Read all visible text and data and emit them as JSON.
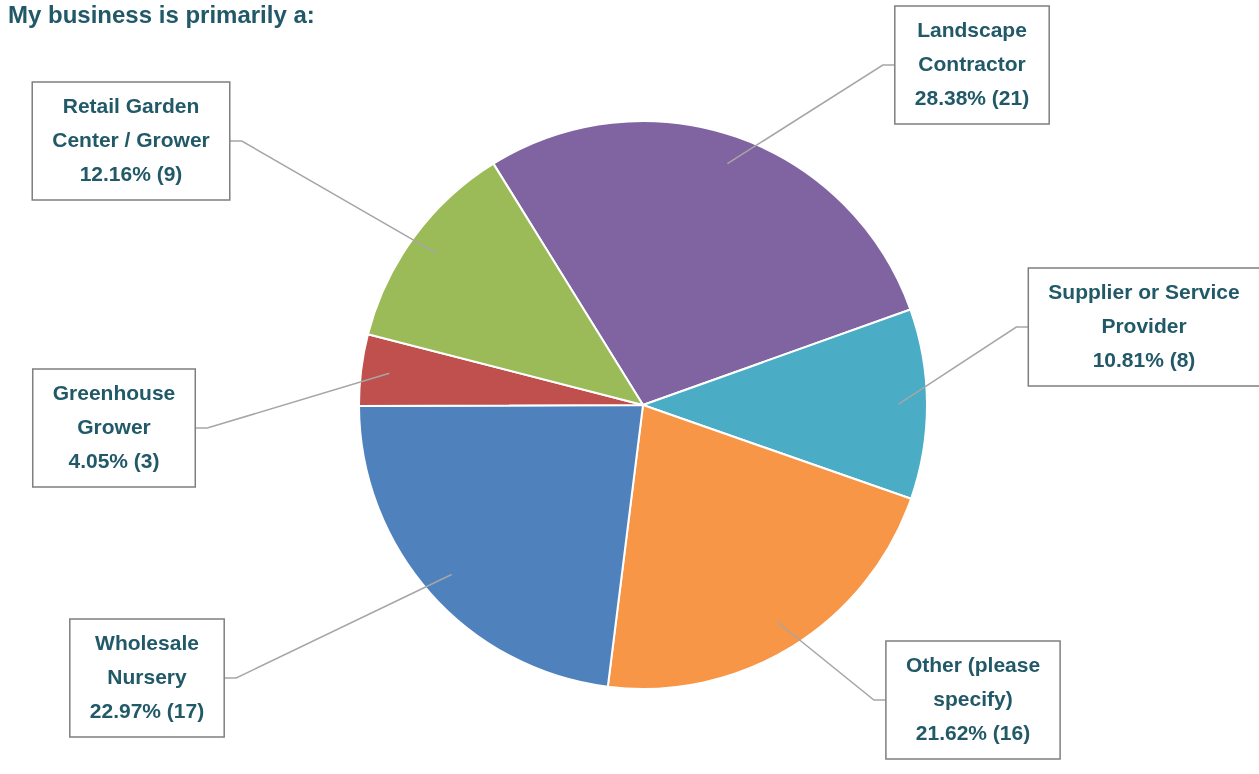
{
  "chart_data": {
    "type": "pie",
    "title": "My business is primarily a:",
    "categories": [
      "Landscape Contractor",
      "Supplier or Service Provider",
      "Other (please specify)",
      "Wholesale Nursery",
      "Greenhouse Grower",
      "Retail Garden Center / Grower"
    ],
    "values": [
      21,
      8,
      16,
      17,
      3,
      9
    ],
    "colors": [
      "#8064a2",
      "#4bacc6",
      "#f79646",
      "#4f81bd",
      "#c0504d",
      "#9bbb59"
    ],
    "value_labels": [
      "28.38% (21)",
      "10.81% (8)",
      "21.62% (16)",
      "22.97% (17)",
      "4.05% (3)",
      "12.16% (9)"
    ]
  }
}
